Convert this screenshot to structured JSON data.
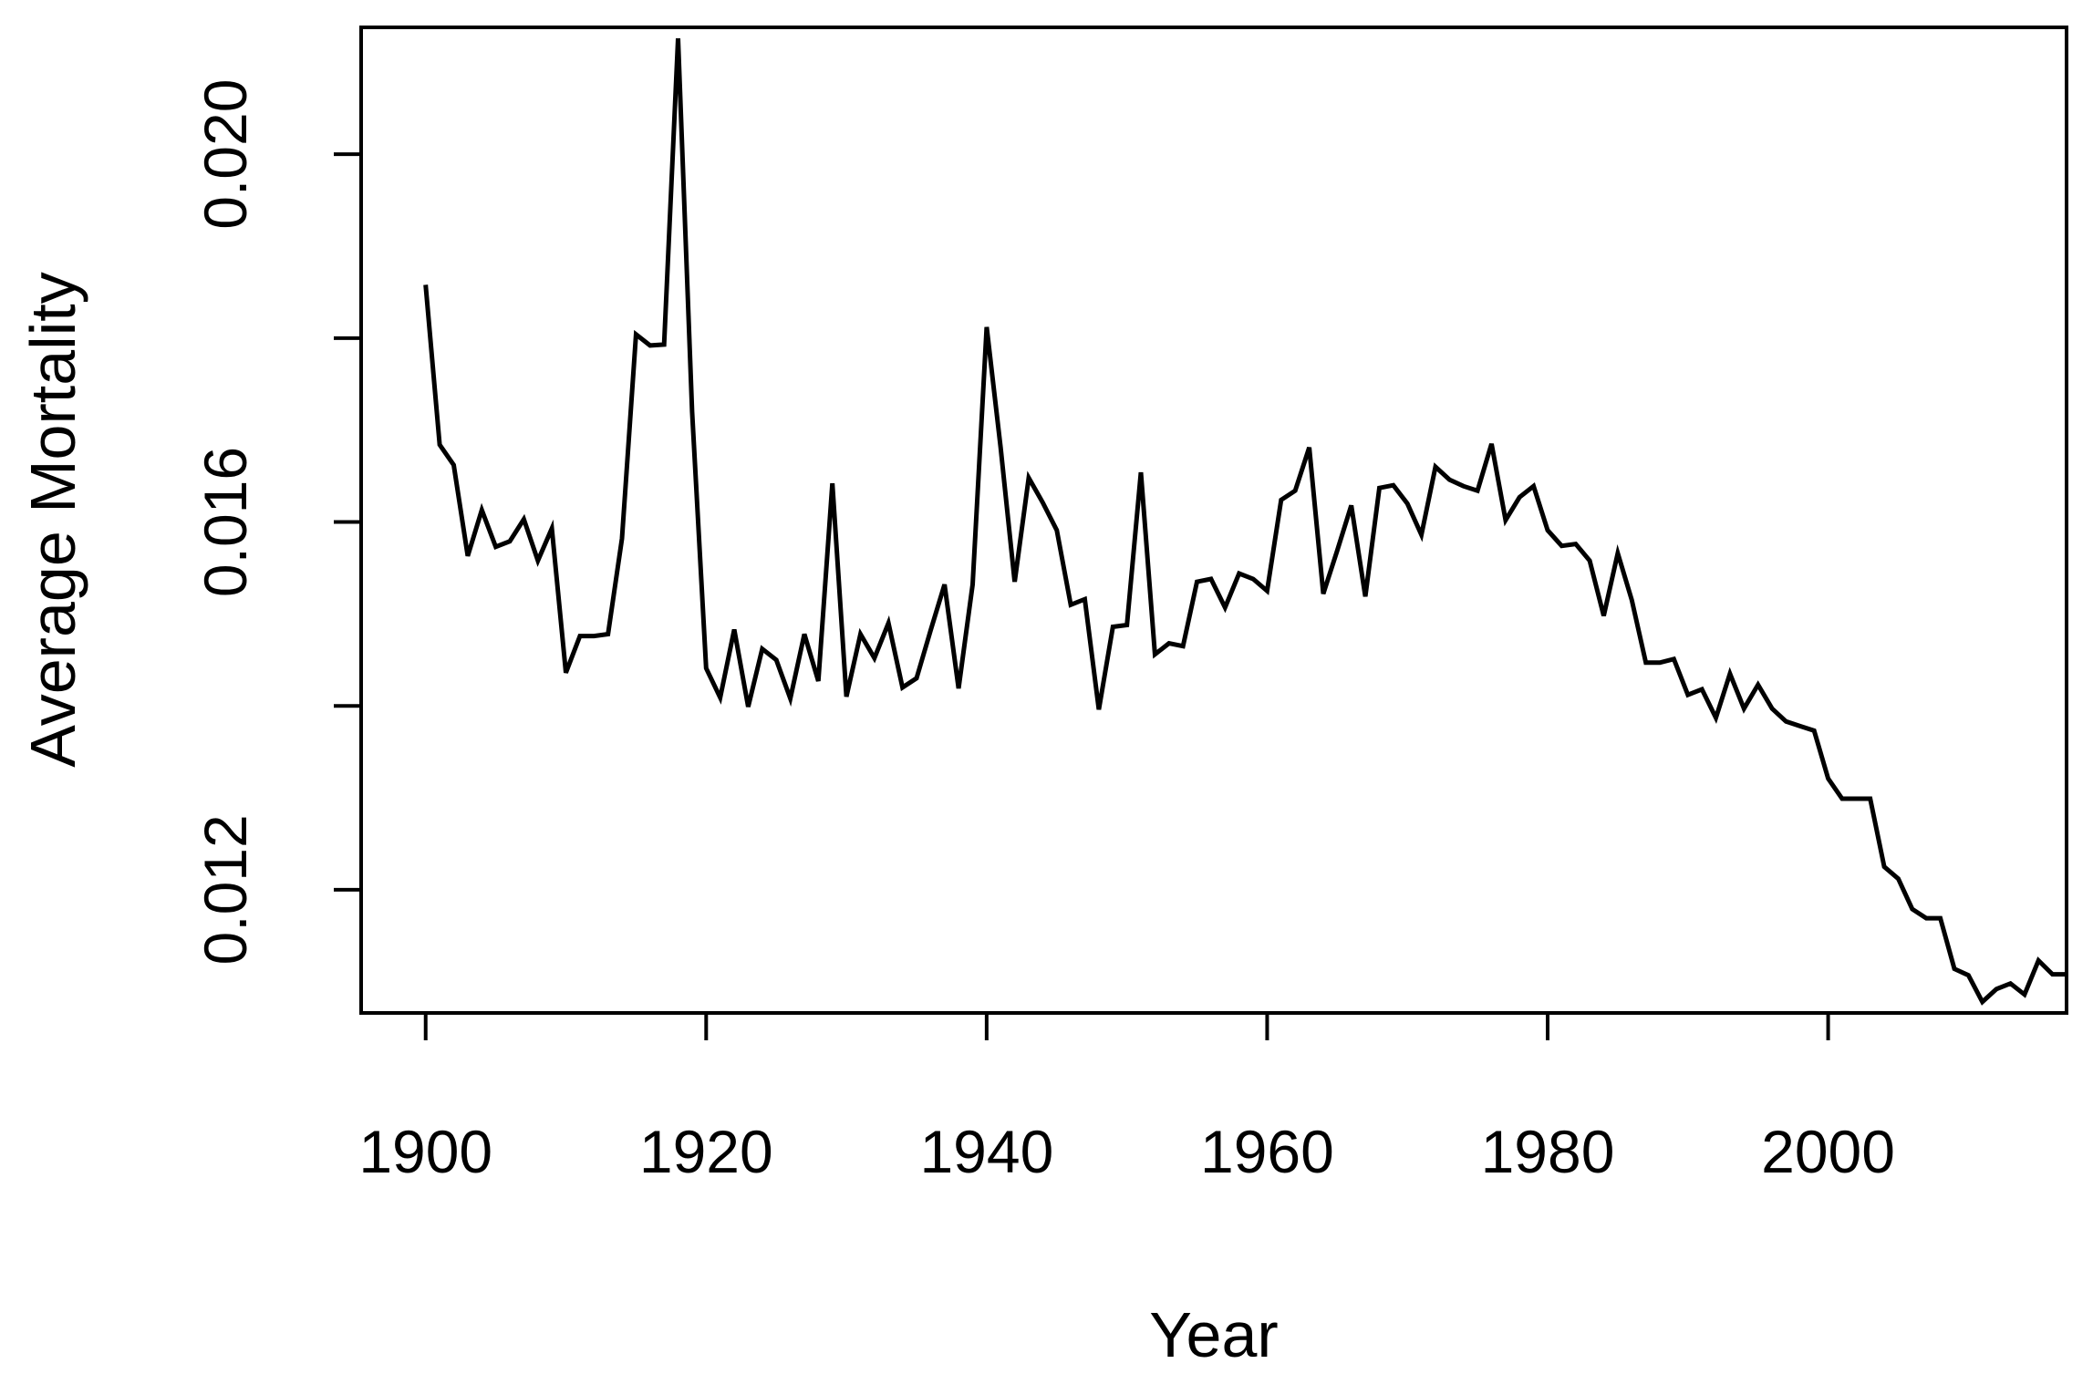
{
  "chart_data": {
    "type": "line",
    "title": "",
    "xlabel": "Year",
    "ylabel": "Average Mortality",
    "xlim": [
      1895.4,
      2017
    ],
    "ylim": [
      0.01066,
      0.02138
    ],
    "xticks": [
      1900,
      1920,
      1940,
      1960,
      1980,
      2000
    ],
    "xtick_labels": [
      "1900",
      "1920",
      "1940",
      "1960",
      "1980",
      "2000"
    ],
    "yticks": [
      0.012,
      0.014,
      0.016,
      0.018,
      0.02
    ],
    "ytick_labels": [
      "0.012",
      "",
      "0.016",
      "",
      "0.020"
    ],
    "line_color": "#000000",
    "grid": false,
    "legend": "none",
    "series": [
      {
        "x": [
          1900,
          1901,
          1902,
          1903,
          1904,
          1905,
          1906,
          1907,
          1908,
          1909,
          1910,
          1911,
          1912,
          1913,
          1914,
          1915,
          1916,
          1917,
          1918,
          1919,
          1920,
          1921,
          1922,
          1923,
          1924,
          1925,
          1926,
          1927,
          1928,
          1929,
          1930,
          1931,
          1932,
          1933,
          1934,
          1935,
          1936,
          1937,
          1938,
          1939,
          1940,
          1941,
          1942,
          1943,
          1944,
          1945,
          1946,
          1947,
          1948,
          1949,
          1950,
          1951,
          1952,
          1953,
          1954,
          1955,
          1956,
          1957,
          1958,
          1959,
          1960,
          1961,
          1962,
          1963,
          1964,
          1965,
          1966,
          1967,
          1968,
          1969,
          1970,
          1971,
          1972,
          1973,
          1974,
          1975,
          1976,
          1977,
          1978,
          1979,
          1980,
          1981,
          1982,
          1983,
          1984,
          1985,
          1986,
          1987,
          1988,
          1989,
          1990,
          1991,
          1992,
          1993,
          1994,
          1995,
          1996,
          1997,
          1998,
          1999,
          2000,
          2001,
          2002,
          2003,
          2004,
          2005,
          2006,
          2007,
          2008,
          2009,
          2010,
          2011,
          2012,
          2013,
          2014,
          2015,
          2016,
          2017
        ],
        "values": [
          0.01858,
          0.01684,
          0.01662,
          0.01563,
          0.01613,
          0.01573,
          0.01579,
          0.01603,
          0.01558,
          0.01593,
          0.01436,
          0.01476,
          0.01476,
          0.01478,
          0.01582,
          0.01804,
          0.01792,
          0.01793,
          0.02126,
          0.0172,
          0.01441,
          0.01409,
          0.01483,
          0.01399,
          0.01462,
          0.0145,
          0.01408,
          0.01478,
          0.01427,
          0.01642,
          0.0141,
          0.01478,
          0.01452,
          0.0149,
          0.0142,
          0.0143,
          0.01482,
          0.01532,
          0.01419,
          0.01532,
          0.01812,
          0.01681,
          0.01535,
          0.01648,
          0.01621,
          0.01591,
          0.0151,
          0.01516,
          0.01396,
          0.01486,
          0.01488,
          0.01654,
          0.01456,
          0.01468,
          0.01465,
          0.01535,
          0.01538,
          0.01507,
          0.01544,
          0.01538,
          0.01525,
          0.01624,
          0.01634,
          0.01681,
          0.01522,
          0.01569,
          0.01618,
          0.01519,
          0.01637,
          0.0164,
          0.0162,
          0.01586,
          0.0166,
          0.01646,
          0.01639,
          0.01634,
          0.01685,
          0.01602,
          0.01627,
          0.01639,
          0.01591,
          0.01574,
          0.01576,
          0.01558,
          0.01498,
          0.01566,
          0.01515,
          0.01447,
          0.01447,
          0.01451,
          0.01412,
          0.01418,
          0.01387,
          0.01435,
          0.01397,
          0.01423,
          0.01397,
          0.01383,
          0.01378,
          0.01373,
          0.01321,
          0.01299,
          0.01299,
          0.01299,
          0.01225,
          0.01212,
          0.01179,
          0.01169,
          0.01169,
          0.01114,
          0.01107,
          0.01078,
          0.01092,
          0.01098,
          0.01086,
          0.01123,
          0.01108,
          0.01108
        ]
      }
    ]
  }
}
